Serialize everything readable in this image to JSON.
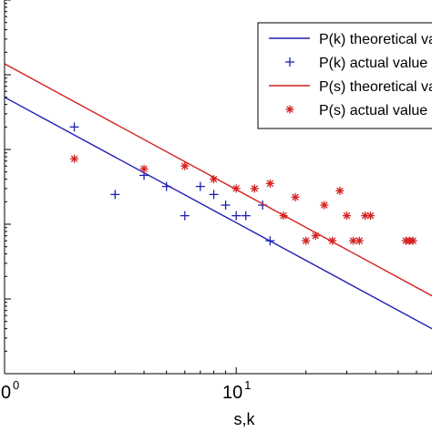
{
  "chart_data": {
    "type": "scatter",
    "xlabel": "s,k",
    "ylabel": "",
    "xscale": "log",
    "yscale": "log",
    "xlim": [
      1,
      70
    ],
    "ylim": [
      1e-05,
      1
    ],
    "x_tick_labels": [
      {
        "value": 1,
        "base": "10",
        "exp": "0"
      },
      {
        "value": 10,
        "base": "10",
        "exp": "1"
      }
    ],
    "grid": false,
    "legend_position": "top-right",
    "series": [
      {
        "name": "P(k) theoretical value",
        "kind": "line",
        "color": "#1f1fb4",
        "x": [
          1,
          70
        ],
        "y": [
          0.05,
          4e-05
        ]
      },
      {
        "name": "P(k) actual value",
        "kind": "scatter",
        "marker": "+",
        "color": "#1f1fb4",
        "x": [
          2,
          3,
          4,
          5,
          6,
          7,
          8,
          9,
          10,
          11,
          13,
          14
        ],
        "y": [
          0.02,
          0.0025,
          0.0045,
          0.0032,
          0.0013,
          0.0032,
          0.0025,
          0.0018,
          0.0013,
          0.0013,
          0.0018,
          0.0006
        ]
      },
      {
        "name": "P(s) theoretical value",
        "kind": "line",
        "color": "#d42020",
        "x": [
          1,
          70
        ],
        "y": [
          0.14,
          0.00011
        ]
      },
      {
        "name": "P(s) actual value",
        "kind": "scatter",
        "marker": "*",
        "color": "#d42020",
        "x": [
          2,
          4,
          6,
          8,
          10,
          12,
          14,
          16,
          18,
          20,
          22,
          24,
          26,
          28,
          30,
          32,
          34,
          36,
          38,
          54,
          56,
          58
        ],
        "y": [
          0.0075,
          0.0055,
          0.006,
          0.004,
          0.003,
          0.003,
          0.0035,
          0.0013,
          0.0023,
          0.0006,
          0.0007,
          0.0018,
          0.0006,
          0.0028,
          0.0013,
          0.0006,
          0.0006,
          0.0013,
          0.0013,
          0.0006,
          0.0006,
          0.0006
        ]
      }
    ]
  }
}
